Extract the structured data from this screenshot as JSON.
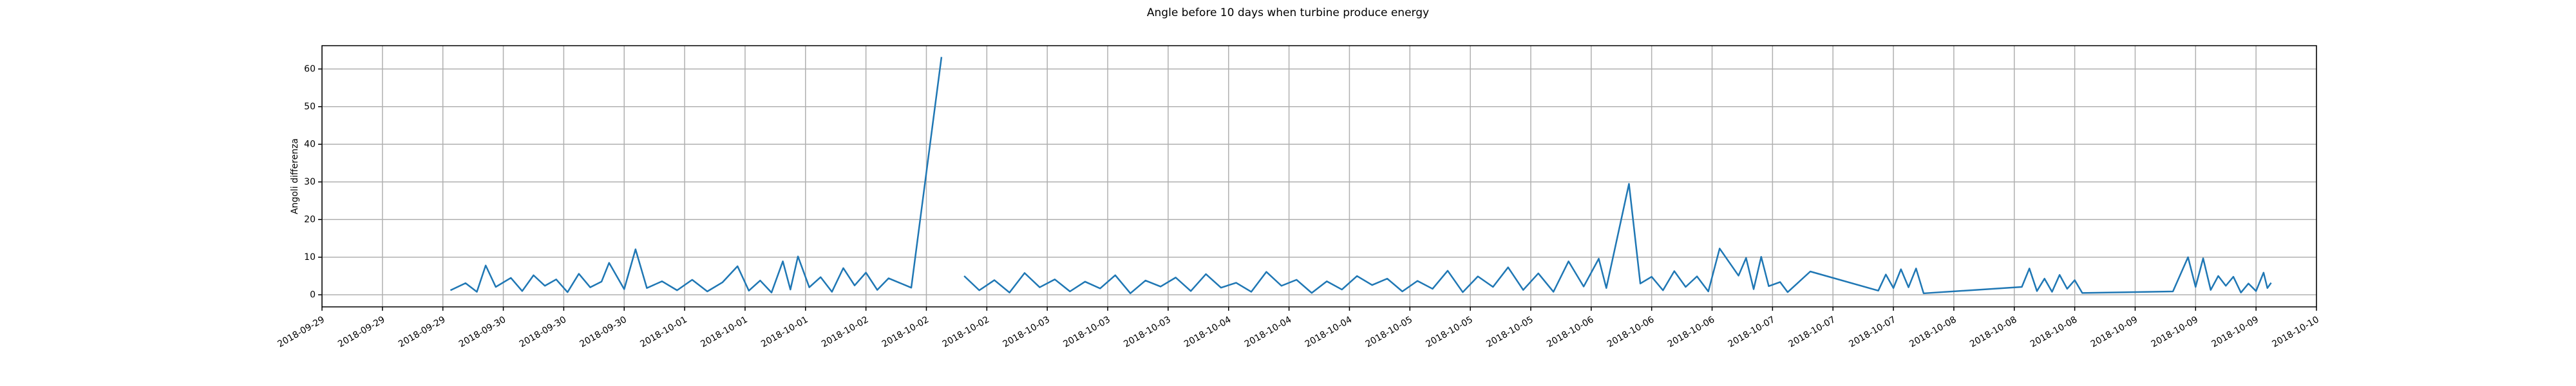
{
  "chart_data": {
    "type": "line",
    "title": "Angle before 10 days when turbine produce energy",
    "ylabel": "Angoli differenza",
    "color": "#1f77b4",
    "grid": true,
    "ylim": [
      -3.2,
      66.2
    ],
    "yticks": [
      0,
      10,
      20,
      30,
      40,
      50,
      60
    ],
    "xlim": [
      "2018-09-29T00:00",
      "2018-10-10T00:00"
    ],
    "xticks": [
      {
        "value": "2018-09-29T00:00",
        "label": "2018-09-29"
      },
      {
        "value": "2018-09-29T08:00",
        "label": "2018-09-29"
      },
      {
        "value": "2018-09-29T16:00",
        "label": "2018-09-29"
      },
      {
        "value": "2018-09-30T00:00",
        "label": "2018-09-30"
      },
      {
        "value": "2018-09-30T08:00",
        "label": "2018-09-30"
      },
      {
        "value": "2018-09-30T16:00",
        "label": "2018-09-30"
      },
      {
        "value": "2018-10-01T00:00",
        "label": "2018-10-01"
      },
      {
        "value": "2018-10-01T08:00",
        "label": "2018-10-01"
      },
      {
        "value": "2018-10-01T16:00",
        "label": "2018-10-01"
      },
      {
        "value": "2018-10-02T00:00",
        "label": "2018-10-02"
      },
      {
        "value": "2018-10-02T08:00",
        "label": "2018-10-02"
      },
      {
        "value": "2018-10-02T16:00",
        "label": "2018-10-02"
      },
      {
        "value": "2018-10-03T00:00",
        "label": "2018-10-03"
      },
      {
        "value": "2018-10-03T08:00",
        "label": "2018-10-03"
      },
      {
        "value": "2018-10-03T16:00",
        "label": "2018-10-03"
      },
      {
        "value": "2018-10-04T00:00",
        "label": "2018-10-04"
      },
      {
        "value": "2018-10-04T08:00",
        "label": "2018-10-04"
      },
      {
        "value": "2018-10-04T16:00",
        "label": "2018-10-04"
      },
      {
        "value": "2018-10-05T00:00",
        "label": "2018-10-05"
      },
      {
        "value": "2018-10-05T08:00",
        "label": "2018-10-05"
      },
      {
        "value": "2018-10-05T16:00",
        "label": "2018-10-05"
      },
      {
        "value": "2018-10-06T00:00",
        "label": "2018-10-06"
      },
      {
        "value": "2018-10-06T08:00",
        "label": "2018-10-06"
      },
      {
        "value": "2018-10-06T16:00",
        "label": "2018-10-06"
      },
      {
        "value": "2018-10-07T00:00",
        "label": "2018-10-07"
      },
      {
        "value": "2018-10-07T08:00",
        "label": "2018-10-07"
      },
      {
        "value": "2018-10-07T16:00",
        "label": "2018-10-07"
      },
      {
        "value": "2018-10-08T00:00",
        "label": "2018-10-08"
      },
      {
        "value": "2018-10-08T08:00",
        "label": "2018-10-08"
      },
      {
        "value": "2018-10-08T16:00",
        "label": "2018-10-08"
      },
      {
        "value": "2018-10-09T00:00",
        "label": "2018-10-09"
      },
      {
        "value": "2018-10-09T08:00",
        "label": "2018-10-09"
      },
      {
        "value": "2018-10-09T16:00",
        "label": "2018-10-09"
      },
      {
        "value": "2018-10-10T00:00",
        "label": "2018-10-10"
      }
    ],
    "x": [
      "2018-09-29T17:00",
      "2018-09-29T19:00",
      "2018-09-29T20:30",
      "2018-09-29T21:40",
      "2018-09-29T23:00",
      "2018-09-30T01:00",
      "2018-09-30T02:30",
      "2018-09-30T04:00",
      "2018-09-30T05:30",
      "2018-09-30T07:00",
      "2018-09-30T08:30",
      "2018-09-30T10:00",
      "2018-09-30T11:30",
      "2018-09-30T13:00",
      "2018-09-30T14:00",
      "2018-09-30T16:00",
      "2018-09-30T17:30",
      "2018-09-30T19:00",
      "2018-09-30T21:00",
      "2018-09-30T23:00",
      "2018-10-01T01:00",
      "2018-10-01T03:00",
      "2018-10-01T05:00",
      "2018-10-01T07:00",
      "2018-10-01T08:30",
      "2018-10-01T10:00",
      "2018-10-01T11:30",
      "2018-10-01T13:00",
      "2018-10-01T14:00",
      "2018-10-01T15:00",
      "2018-10-01T16:30",
      "2018-10-01T18:00",
      "2018-10-01T19:30",
      "2018-10-01T21:00",
      "2018-10-01T22:30",
      "2018-10-02T00:00",
      "2018-10-02T01:30",
      "2018-10-02T03:00",
      "2018-10-02T06:00",
      "2018-10-02T10:00",
      "2018-10-02T11:00",
      "2018-10-02T13:00",
      "2018-10-02T15:00",
      "2018-10-02T17:00",
      "2018-10-02T19:00",
      "2018-10-02T21:00",
      "2018-10-02T23:00",
      "2018-10-03T01:00",
      "2018-10-03T03:00",
      "2018-10-03T05:00",
      "2018-10-03T07:00",
      "2018-10-03T09:00",
      "2018-10-03T11:00",
      "2018-10-03T13:00",
      "2018-10-03T15:00",
      "2018-10-03T17:00",
      "2018-10-03T19:00",
      "2018-10-03T21:00",
      "2018-10-03T23:00",
      "2018-10-04T01:00",
      "2018-10-04T03:00",
      "2018-10-04T05:00",
      "2018-10-04T07:00",
      "2018-10-04T09:00",
      "2018-10-04T11:00",
      "2018-10-04T13:00",
      "2018-10-04T15:00",
      "2018-10-04T17:00",
      "2018-10-04T19:00",
      "2018-10-04T21:00",
      "2018-10-04T23:00",
      "2018-10-05T01:00",
      "2018-10-05T03:00",
      "2018-10-05T05:00",
      "2018-10-05T07:00",
      "2018-10-05T09:00",
      "2018-10-05T11:00",
      "2018-10-05T13:00",
      "2018-10-05T15:00",
      "2018-10-05T17:00",
      "2018-10-05T19:00",
      "2018-10-05T21:00",
      "2018-10-05T23:00",
      "2018-10-06T01:00",
      "2018-10-06T02:00",
      "2018-10-06T05:00",
      "2018-10-06T06:30",
      "2018-10-06T08:00",
      "2018-10-06T09:30",
      "2018-10-06T11:00",
      "2018-10-06T12:30",
      "2018-10-06T14:00",
      "2018-10-06T15:30",
      "2018-10-06T17:00",
      "2018-10-06T19:30",
      "2018-10-06T20:30",
      "2018-10-06T21:30",
      "2018-10-06T22:30",
      "2018-10-06T23:30",
      "2018-10-07T01:00",
      "2018-10-07T02:00",
      "2018-10-07T05:00",
      "2018-10-07T14:00",
      "2018-10-07T15:00",
      "2018-10-07T16:00",
      "2018-10-07T17:00",
      "2018-10-07T18:00",
      "2018-10-07T19:00",
      "2018-10-07T20:00",
      "2018-10-08T09:00",
      "2018-10-08T10:00",
      "2018-10-08T11:00",
      "2018-10-08T12:00",
      "2018-10-08T13:00",
      "2018-10-08T14:00",
      "2018-10-08T15:00",
      "2018-10-08T16:00",
      "2018-10-08T17:00",
      "2018-10-09T05:00",
      "2018-10-09T07:00",
      "2018-10-09T08:00",
      "2018-10-09T09:00",
      "2018-10-09T10:00",
      "2018-10-09T11:00",
      "2018-10-09T12:00",
      "2018-10-09T13:00",
      "2018-10-09T14:00",
      "2018-10-09T15:00",
      "2018-10-09T16:00",
      "2018-10-09T17:00",
      "2018-10-09T17:30",
      "2018-10-09T18:00"
    ],
    "values": [
      1.2,
      3.1,
      0.8,
      7.8,
      2.1,
      4.5,
      1.0,
      5.2,
      2.4,
      4.1,
      0.7,
      5.6,
      2.0,
      3.5,
      8.5,
      1.5,
      12.1,
      1.8,
      3.6,
      1.2,
      4.0,
      0.9,
      3.3,
      7.6,
      1.1,
      3.8,
      0.6,
      8.9,
      1.4,
      10.2,
      2.0,
      4.7,
      0.8,
      7.1,
      2.5,
      5.9,
      1.3,
      4.4,
      1.9,
      63.2,
      null,
      5.0,
      1.2,
      3.9,
      0.6,
      5.8,
      2.0,
      4.1,
      0.9,
      3.5,
      1.7,
      5.2,
      0.4,
      3.8,
      2.2,
      4.6,
      1.0,
      5.5,
      1.9,
      3.2,
      0.8,
      6.1,
      2.4,
      4.0,
      0.5,
      3.6,
      1.4,
      5.0,
      2.6,
      4.3,
      0.9,
      3.7,
      1.6,
      6.4,
      0.7,
      4.9,
      2.1,
      7.3,
      1.3,
      5.7,
      0.8,
      8.9,
      2.2,
      9.6,
      1.8,
      29.5,
      3.0,
      4.8,
      1.2,
      6.3,
      2.1,
      4.9,
      0.9,
      12.3,
      5.1,
      9.8,
      1.5,
      10.1,
      2.3,
      3.4,
      0.7,
      6.2,
      1.1,
      5.4,
      1.8,
      6.8,
      2.0,
      7.0,
      0.4,
      2.1,
      7.0,
      1.0,
      4.3,
      0.8,
      5.3,
      1.6,
      3.9,
      0.5,
      0.9,
      10.0,
      2.1,
      9.7,
      1.3,
      5.0,
      2.4,
      4.8,
      0.6,
      3.0,
      1.0,
      5.9,
      1.8,
      3.2
    ]
  }
}
